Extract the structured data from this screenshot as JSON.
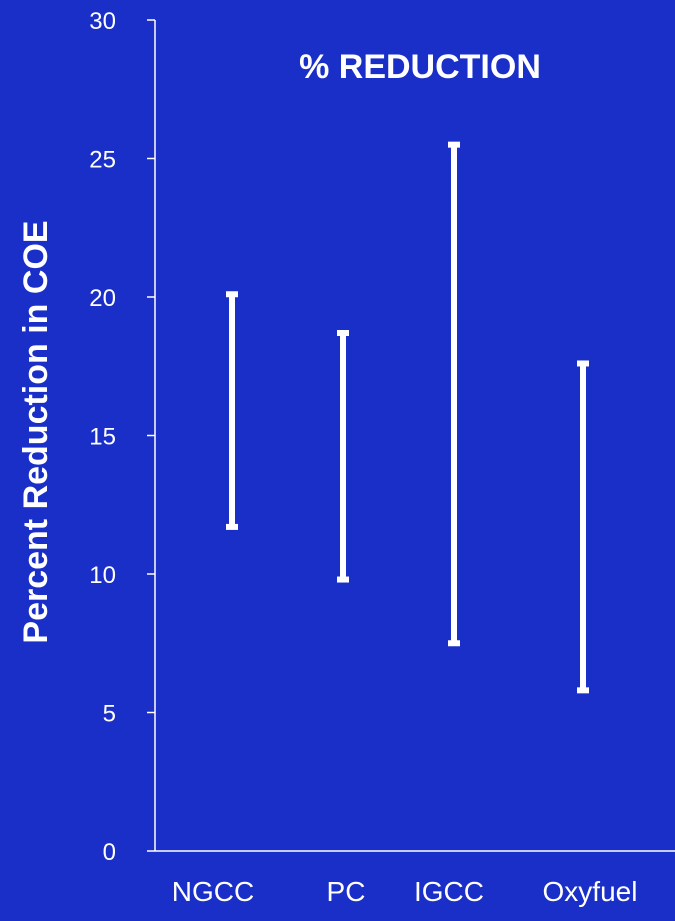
{
  "chart_data": {
    "type": "range-bar",
    "title": "% REDUCTION",
    "ylabel": "Percent Reduction in COE",
    "xlabel": "",
    "ylim": [
      0,
      30
    ],
    "yticks": [
      0,
      5,
      10,
      15,
      20,
      25,
      30
    ],
    "categories": [
      "NGCC",
      "PC",
      "IGCC",
      "Oxyfuel"
    ],
    "ranges": [
      {
        "category": "NGCC",
        "low": 11.7,
        "high": 20.1
      },
      {
        "category": "PC",
        "low": 9.8,
        "high": 18.7
      },
      {
        "category": "IGCC",
        "low": 7.5,
        "high": 25.5
      },
      {
        "category": "Oxyfuel",
        "low": 5.8,
        "high": 17.6
      }
    ],
    "grid": false,
    "colors": {
      "background": "#1a2fc8",
      "marks": "#ffffff"
    }
  }
}
